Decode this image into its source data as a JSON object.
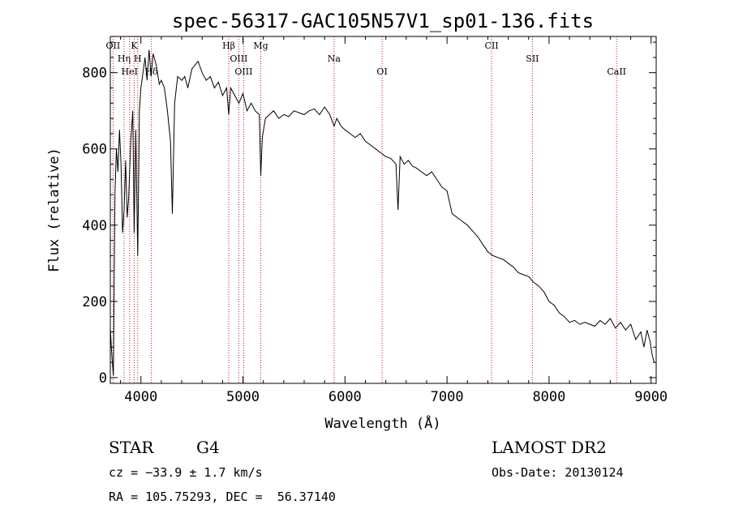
{
  "chart_data": {
    "type": "line",
    "title": "spec-56317-GAC105N57V1_sp01-136.fits",
    "xlabel": "Wavelength (Å)",
    "ylabel": "Flux (relative)",
    "xlim": [
      3700,
      9050
    ],
    "ylim": [
      -15,
      895
    ],
    "x_ticks": [
      4000,
      5000,
      6000,
      7000,
      8000,
      9000
    ],
    "y_ticks": [
      0,
      200,
      400,
      600,
      800
    ],
    "grid": false,
    "line_color": "#000000",
    "marker_color": "#b22222",
    "spectral_lines": [
      {
        "name": "OII",
        "wavelength": 3727
      },
      {
        "name": "Hη",
        "wavelength": 3835
      },
      {
        "name": "HeI",
        "wavelength": 3889
      },
      {
        "name": "K",
        "wavelength": 3934
      },
      {
        "name": "H",
        "wavelength": 3969
      },
      {
        "name": "Hδ",
        "wavelength": 4102
      },
      {
        "name": "Hβ",
        "wavelength": 4861
      },
      {
        "name": "OIII",
        "wavelength": 4959
      },
      {
        "name": "OIII",
        "wavelength": 5007
      },
      {
        "name": "Mg",
        "wavelength": 5175
      },
      {
        "name": "Na",
        "wavelength": 5893
      },
      {
        "name": "OI",
        "wavelength": 6364
      },
      {
        "name": "CII",
        "wavelength": 7437
      },
      {
        "name": "SII",
        "wavelength": 7837
      },
      {
        "name": "CaII",
        "wavelength": 8662
      }
    ],
    "series": [
      {
        "values": [
          [
            3700,
            130
          ],
          [
            3710,
            80
          ],
          [
            3720,
            40
          ],
          [
            3730,
            5
          ],
          [
            3745,
            480
          ],
          [
            3760,
            600
          ],
          [
            3775,
            540
          ],
          [
            3790,
            650
          ],
          [
            3805,
            560
          ],
          [
            3820,
            380
          ],
          [
            3835,
            440
          ],
          [
            3850,
            570
          ],
          [
            3865,
            420
          ],
          [
            3880,
            470
          ],
          [
            3900,
            620
          ],
          [
            3920,
            700
          ],
          [
            3934,
            380
          ],
          [
            3950,
            650
          ],
          [
            3969,
            320
          ],
          [
            3985,
            700
          ],
          [
            4000,
            760
          ],
          [
            4020,
            800
          ],
          [
            4040,
            840
          ],
          [
            4060,
            780
          ],
          [
            4080,
            860
          ],
          [
            4100,
            790
          ],
          [
            4120,
            850
          ],
          [
            4150,
            820
          ],
          [
            4180,
            770
          ],
          [
            4200,
            780
          ],
          [
            4230,
            760
          ],
          [
            4260,
            700
          ],
          [
            4290,
            620
          ],
          [
            4308,
            430
          ],
          [
            4330,
            720
          ],
          [
            4360,
            790
          ],
          [
            4400,
            780
          ],
          [
            4430,
            790
          ],
          [
            4460,
            760
          ],
          [
            4500,
            810
          ],
          [
            4530,
            820
          ],
          [
            4560,
            830
          ],
          [
            4600,
            800
          ],
          [
            4640,
            780
          ],
          [
            4680,
            790
          ],
          [
            4720,
            760
          ],
          [
            4760,
            775
          ],
          [
            4800,
            740
          ],
          [
            4840,
            760
          ],
          [
            4861,
            690
          ],
          [
            4880,
            760
          ],
          [
            4920,
            740
          ],
          [
            4960,
            720
          ],
          [
            5000,
            745
          ],
          [
            5040,
            700
          ],
          [
            5080,
            720
          ],
          [
            5120,
            700
          ],
          [
            5160,
            690
          ],
          [
            5175,
            530
          ],
          [
            5190,
            630
          ],
          [
            5220,
            680
          ],
          [
            5260,
            690
          ],
          [
            5300,
            700
          ],
          [
            5350,
            680
          ],
          [
            5400,
            690
          ],
          [
            5450,
            685
          ],
          [
            5500,
            700
          ],
          [
            5550,
            695
          ],
          [
            5600,
            690
          ],
          [
            5650,
            700
          ],
          [
            5700,
            705
          ],
          [
            5750,
            690
          ],
          [
            5800,
            710
          ],
          [
            5850,
            690
          ],
          [
            5893,
            660
          ],
          [
            5920,
            680
          ],
          [
            5960,
            660
          ],
          [
            6000,
            650
          ],
          [
            6050,
            640
          ],
          [
            6100,
            630
          ],
          [
            6150,
            640
          ],
          [
            6200,
            620
          ],
          [
            6250,
            610
          ],
          [
            6300,
            600
          ],
          [
            6350,
            590
          ],
          [
            6400,
            580
          ],
          [
            6450,
            575
          ],
          [
            6500,
            560
          ],
          [
            6520,
            440
          ],
          [
            6540,
            580
          ],
          [
            6580,
            560
          ],
          [
            6620,
            570
          ],
          [
            6660,
            555
          ],
          [
            6700,
            550
          ],
          [
            6750,
            540
          ],
          [
            6800,
            530
          ],
          [
            6850,
            540
          ],
          [
            6900,
            520
          ],
          [
            6950,
            500
          ],
          [
            7000,
            490
          ],
          [
            7050,
            430
          ],
          [
            7100,
            420
          ],
          [
            7150,
            410
          ],
          [
            7200,
            400
          ],
          [
            7250,
            385
          ],
          [
            7300,
            370
          ],
          [
            7350,
            350
          ],
          [
            7400,
            330
          ],
          [
            7450,
            320
          ],
          [
            7500,
            315
          ],
          [
            7550,
            310
          ],
          [
            7600,
            300
          ],
          [
            7650,
            290
          ],
          [
            7700,
            275
          ],
          [
            7750,
            270
          ],
          [
            7800,
            265
          ],
          [
            7850,
            250
          ],
          [
            7900,
            240
          ],
          [
            7950,
            225
          ],
          [
            8000,
            200
          ],
          [
            8050,
            190
          ],
          [
            8100,
            170
          ],
          [
            8150,
            160
          ],
          [
            8200,
            145
          ],
          [
            8250,
            150
          ],
          [
            8300,
            140
          ],
          [
            8350,
            145
          ],
          [
            8400,
            140
          ],
          [
            8450,
            135
          ],
          [
            8500,
            150
          ],
          [
            8550,
            140
          ],
          [
            8600,
            155
          ],
          [
            8650,
            130
          ],
          [
            8700,
            145
          ],
          [
            8750,
            125
          ],
          [
            8800,
            140
          ],
          [
            8850,
            100
          ],
          [
            8900,
            120
          ],
          [
            8930,
            80
          ],
          [
            8960,
            125
          ],
          [
            8990,
            95
          ],
          [
            9010,
            60
          ],
          [
            9030,
            40
          ]
        ]
      }
    ]
  },
  "info": {
    "object_type": "STAR",
    "subclass": "G4",
    "survey": "LAMOST DR2",
    "cz": "cz = −33.9 ± 1.7 km/s",
    "obs_date": "Obs-Date: 20130124",
    "coords": "RA = 105.75293, DEC =  56.37140"
  }
}
